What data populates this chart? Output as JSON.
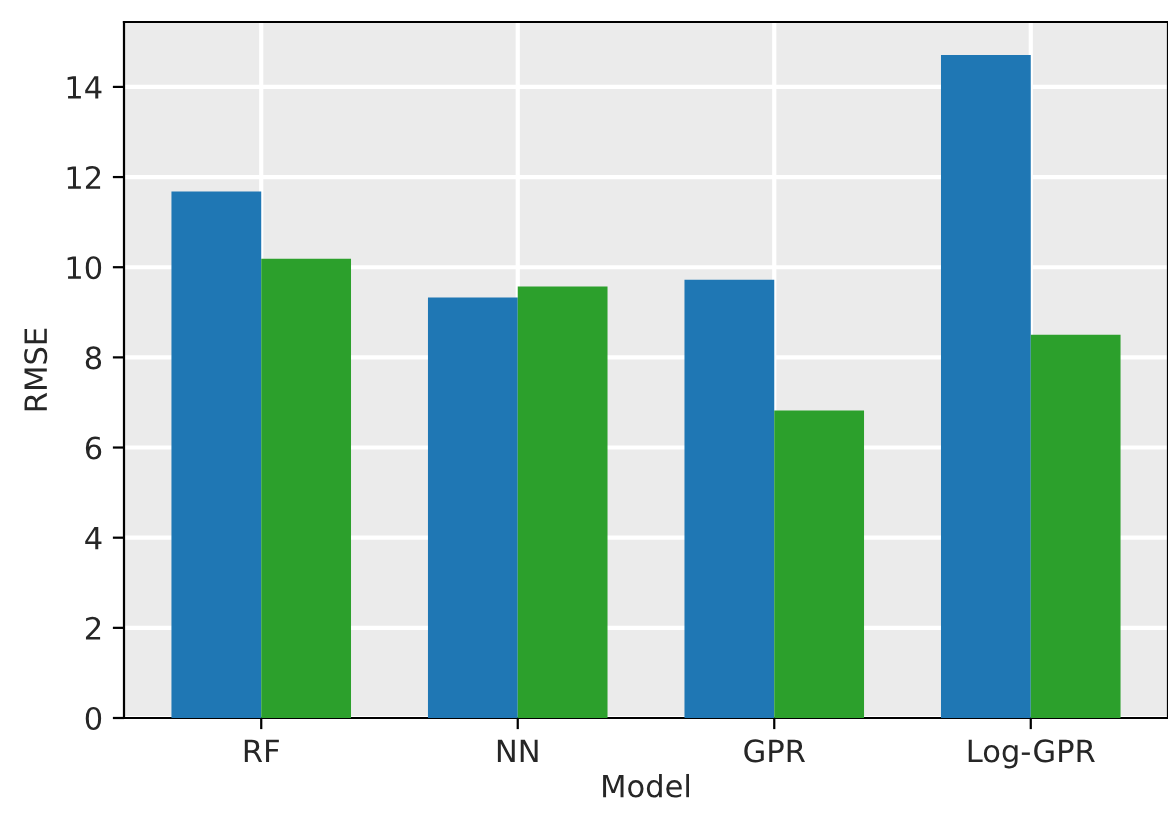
{
  "chart_data": {
    "type": "bar",
    "xlabel": "Model",
    "ylabel": "RMSE",
    "categories": [
      "RF",
      "NN",
      "GPR",
      "Log-GPR"
    ],
    "series": [
      {
        "color": "#1f77b4",
        "values": [
          11.68,
          9.33,
          9.72,
          14.71
        ]
      },
      {
        "color": "#2ca02c",
        "values": [
          10.19,
          9.57,
          6.82,
          8.5
        ]
      }
    ],
    "ylim": [
      0,
      15.44
    ],
    "yticks": [
      0,
      2,
      4,
      6,
      8,
      10,
      12,
      14
    ],
    "grid": true
  }
}
